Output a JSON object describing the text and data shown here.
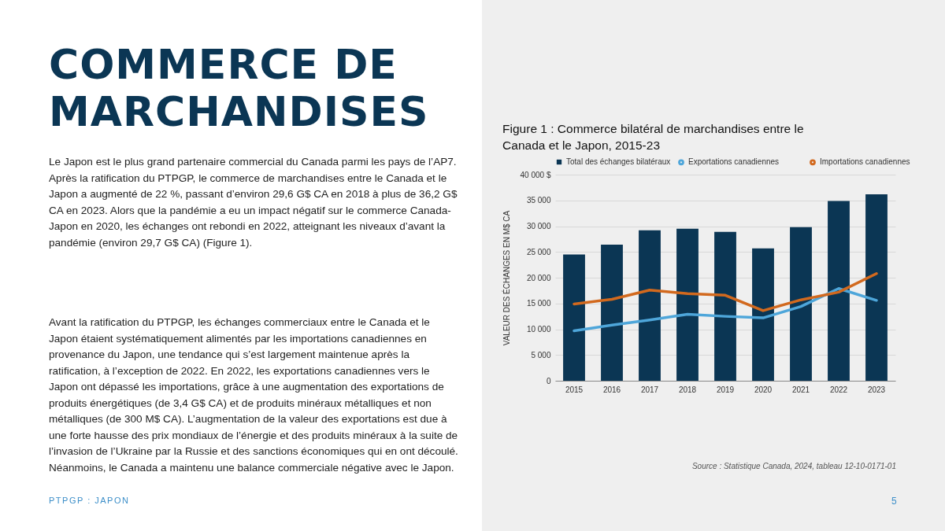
{
  "chart_data": {
    "type": "bar",
    "title": "Figure 1 : Commerce bilatéral de marchandises entre le Canada et le Japon, 2015-23",
    "ylabel": "VALEUR DES ÉCHANGES EN M$ CA",
    "categories": [
      "2015",
      "2016",
      "2017",
      "2018",
      "2019",
      "2020",
      "2021",
      "2022",
      "2023"
    ],
    "series": [
      {
        "name": "Total des échanges bilatéraux",
        "type": "bar",
        "color": "#0b3654",
        "values": [
          24500,
          26400,
          29200,
          29500,
          28900,
          25700,
          29800,
          34900,
          36200
        ]
      },
      {
        "name": "Exportations canadiennes",
        "type": "line",
        "color": "#4ea6da",
        "values": [
          9700,
          10800,
          11800,
          12900,
          12500,
          12200,
          14400,
          17900,
          15600
        ]
      },
      {
        "name": "Importations canadiennes",
        "type": "line",
        "color": "#d2691e",
        "values": [
          14900,
          15800,
          17600,
          16900,
          16600,
          13600,
          15700,
          17200,
          20800
        ]
      }
    ],
    "ylim": [
      0,
      40000
    ],
    "yticks": [
      0,
      {
        "value": 5000,
        "label": "5 000"
      },
      {
        "value": 10000,
        "label": "10 000"
      },
      {
        "value": 15000,
        "label": "15 000"
      },
      {
        "value": 20000,
        "label": "20 000"
      },
      {
        "value": 25000,
        "label": "25 000"
      },
      {
        "value": 30000,
        "label": "30 000"
      },
      {
        "value": 35000,
        "label": "35 000"
      },
      {
        "value": 40000,
        "label": "40 000 $"
      }
    ],
    "grid": "y",
    "legend": "top left",
    "marker": "none",
    "annotations": [
      "COMMERCE DE MARCHANDISES",
      "Le Japon est le plus grand partenaire commercial du Canada parmi les pays de l’AP7. Après la ratification du PTPGP, le commerce de marchandises entre le Canada et le Japon a augmenté de 22 %, passant d’environ 29,6 G$ CA en 2018 à plus de 36,2 G$ CA en 2023. Alors que la pandémie a eu un impact négatif sur le commerce Canada-Japon en 2020, les échanges ont rebondi en 2022, atteignant les niveaux d’avant la pandémie (environ 29,7 G$ CA) (Figure 1).",
      "Avant la ratification du PTPGP, les échanges commerciaux entre le Canada et le Japon étaient systématiquement alimentés par les importations canadiennes en provenance du Japon, une tendance qui s’est largement maintenue après la ratification, à l’exception de 2022. En 2022, les exportations canadiennes vers le Japon ont dépassé les importations, grâce à une augmentation des exportations de produits énergétiques (de 3,4 G$ CA) et de produits minéraux métalliques et non métalliques (de 300 M$ CA). L’augmentation de la valeur des exportations est due à une forte hausse des prix mondiaux de l’énergie et des produits minéraux à la suite de l’invasion de l’Ukraine par la Russie et des sanctions économiques qui en ont découlé. Néanmoins, le Canada a maintenu une balance commerciale négative avec le Japon.",
      "Source : Statistique Canada, 2024, tableau 12-10-0171-01",
      "PTPGP : JAPON",
      "5"
    ]
  }
}
